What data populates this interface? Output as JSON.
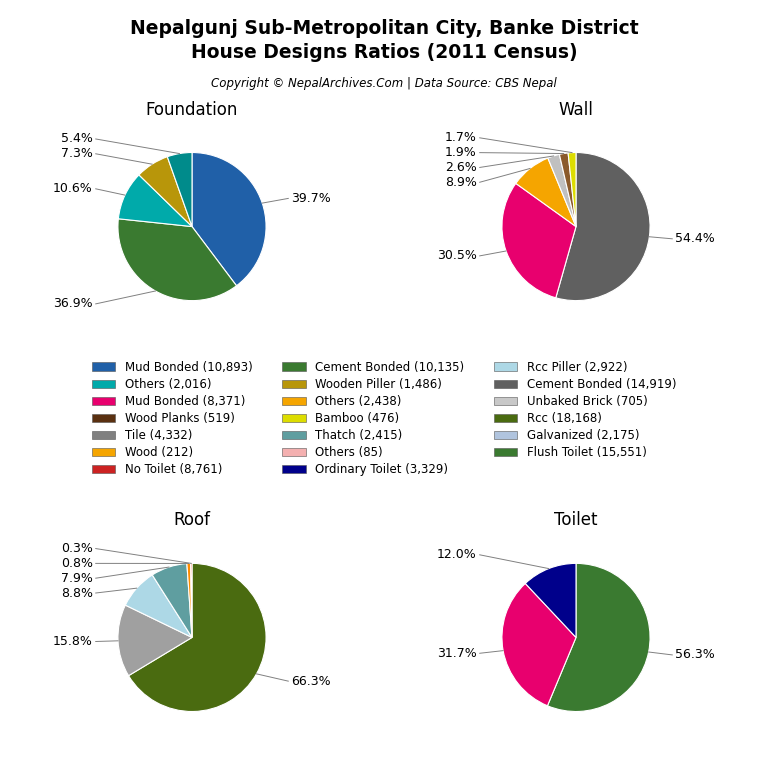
{
  "title": "Nepalgunj Sub-Metropolitan City, Banke District\nHouse Designs Ratios (2011 Census)",
  "subtitle": "Copyright © NepalArchives.Com | Data Source: CBS Nepal",
  "legend": "center",
  "series": [
    {
      "name": "Mud Bonded (10,893)",
      "color": "#2060a8"
    },
    {
      "name": "Others (2,016)",
      "color": "#00aaaa"
    },
    {
      "name": "Mud Bonded (8,371)",
      "color": "#e8006e"
    },
    {
      "name": "Wood Planks (519)",
      "color": "#5a3010"
    },
    {
      "name": "Tile (4,332)",
      "color": "#808080"
    },
    {
      "name": "Wood (212)",
      "color": "#f5a500"
    },
    {
      "name": "No Toilet (8,761)",
      "color": "#cc2222"
    },
    {
      "name": "Cement Bonded (10,135)",
      "color": "#3a7a30"
    },
    {
      "name": "Wooden Piller (1,486)",
      "color": "#b8960a"
    },
    {
      "name": "Others (2,438)",
      "color": "#f5a500"
    },
    {
      "name": "Bamboo (476)",
      "color": "#dddd00"
    },
    {
      "name": "Thatch (2,415)",
      "color": "#5f9ea0"
    },
    {
      "name": "Others (85)",
      "color": "#f4b0b0"
    },
    {
      "name": "Ordinary Toilet (3,329)",
      "color": "#00008b"
    },
    {
      "name": "Rcc Piller (2,922)",
      "color": "#add8e6"
    },
    {
      "name": "Cement Bonded (14,919)",
      "color": "#606060"
    },
    {
      "name": "Unbaked Brick (705)",
      "color": "#c8c8c8"
    },
    {
      "name": "Rcc (18,168)",
      "color": "#4a6b10"
    },
    {
      "name": "Galvanized (2,175)",
      "color": "#b0c4de"
    },
    {
      "name": "Flush Toilet (15,551)",
      "color": "#3a7a30"
    }
  ],
  "chart_data": [
    {
      "type": "pie",
      "title": "Foundation",
      "values": [
        39.7,
        36.9,
        10.6,
        7.3,
        5.4
      ],
      "value_labels": [
        "39.7%",
        "36.9%",
        "10.6%",
        "7.3%",
        "5.4%"
      ],
      "colors": [
        "#2060a8",
        "#3a7a30",
        "#00aaaa",
        "#b8960a",
        "#008b8b"
      ],
      "data_labels": true
    },
    {
      "type": "pie",
      "title": "Wall",
      "values": [
        54.4,
        30.5,
        8.9,
        2.6,
        1.9,
        1.7
      ],
      "value_labels": [
        "54.4%",
        "30.5%",
        "8.9%",
        "2.6%",
        "1.9%",
        "1.7%"
      ],
      "colors": [
        "#606060",
        "#e8006e",
        "#f5a500",
        "#c0c0c0",
        "#8b5a2b",
        "#dddd00"
      ],
      "data_labels": true
    },
    {
      "type": "pie",
      "title": "Roof",
      "values": [
        66.3,
        15.8,
        8.8,
        7.9,
        0.8,
        0.3
      ],
      "value_labels": [
        "66.3%",
        "15.8%",
        "8.8%",
        "7.9%",
        "0.8%",
        "0.3%"
      ],
      "colors": [
        "#4a6b10",
        "#a0a0a0",
        "#add8e6",
        "#5f9ea0",
        "#ff8c00",
        "#ff4400"
      ],
      "data_labels": true
    },
    {
      "type": "pie",
      "title": "Toilet",
      "values": [
        56.3,
        31.7,
        12.0
      ],
      "value_labels": [
        "56.3%",
        "31.7%",
        "12.0%"
      ],
      "colors": [
        "#3a7a30",
        "#e8006e",
        "#00008b"
      ],
      "data_labels": true
    }
  ]
}
